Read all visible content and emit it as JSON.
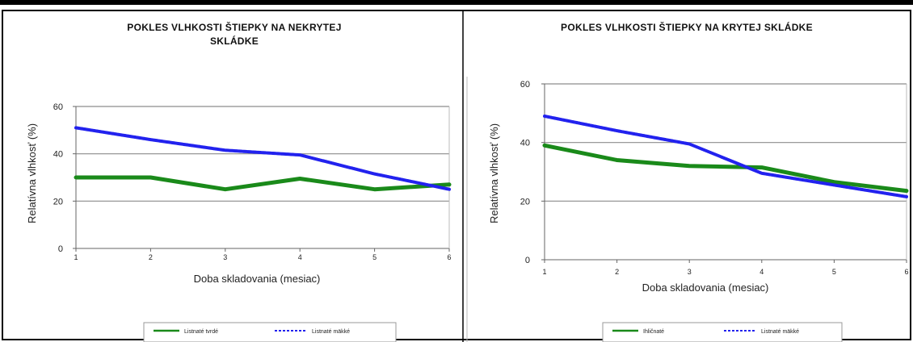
{
  "chart_data": [
    {
      "type": "line",
      "title": "POKLES VLHKOSTI ŠTIEPKY NA NEKRYTEJ SKLÁDKE",
      "title_lines": [
        "POKLES VLHKOSTI ŠTIEPKY NA NEKRYTEJ",
        "SKLÁDKE"
      ],
      "xlabel": "Doba skladovania (mesiac)",
      "ylabel": "Relatívna vlhkosť (%)",
      "x": [
        1,
        2,
        3,
        4,
        5,
        6
      ],
      "ylim": [
        0,
        60
      ],
      "yticks": [
        0,
        20,
        40,
        60
      ],
      "grid": true,
      "legend_position": "bottom",
      "series": [
        {
          "name": "Listnaté tvrdé",
          "color": "#1a8a1a",
          "style": "solid",
          "values": [
            30,
            30,
            25,
            29.5,
            25,
            27
          ]
        },
        {
          "name": "Listnaté mäkké",
          "color": "#2222ee",
          "style": "dashed",
          "values": [
            51,
            46,
            41.5,
            39.5,
            31.5,
            25
          ]
        }
      ]
    },
    {
      "type": "line",
      "title": "POKLES VLHKOSTI ŠTIEPKY NA KRYTEJ SKLÁDKE",
      "title_lines": [
        "POKLES VLHKOSTI ŠTIEPKY NA KRYTEJ SKLÁDKE"
      ],
      "xlabel": "Doba skladovania (mesiac)",
      "ylabel": "Relatívna vlhkosť (%)",
      "x": [
        1,
        2,
        3,
        4,
        5,
        6
      ],
      "ylim": [
        0,
        60
      ],
      "yticks": [
        0,
        20,
        40,
        60
      ],
      "grid": true,
      "legend_position": "bottom",
      "series": [
        {
          "name": "Ihličnaté",
          "color": "#1a8a1a",
          "style": "solid",
          "values": [
            39,
            34,
            32,
            31.5,
            26.5,
            23.5
          ]
        },
        {
          "name": "Listnaté mäkké",
          "color": "#2222ee",
          "style": "dashed",
          "values": [
            49,
            44,
            39.5,
            29.5,
            25.5,
            21.5
          ]
        }
      ]
    }
  ]
}
